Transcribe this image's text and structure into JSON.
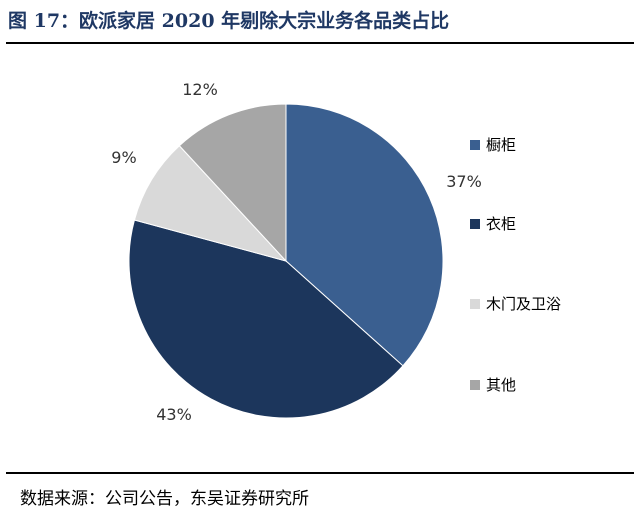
{
  "header": {
    "title": "图 17：欧派家居 2020 年剔除大宗业务各品类占比"
  },
  "footer": {
    "source": "数据来源：公司公告，东吴证券研究所"
  },
  "chart_data": {
    "type": "pie",
    "categories": [
      "橱柜",
      "衣柜",
      "木门及卫浴",
      "其他"
    ],
    "values": [
      37,
      43,
      9,
      12
    ],
    "labels": [
      "37%",
      "43%",
      "9%",
      "12%"
    ],
    "colors": [
      "#3a5f90",
      "#1c365c",
      "#d9d9d9",
      "#a6a6a6"
    ],
    "start_angle_deg": 0,
    "direction": "clockwise",
    "legend": "right"
  }
}
